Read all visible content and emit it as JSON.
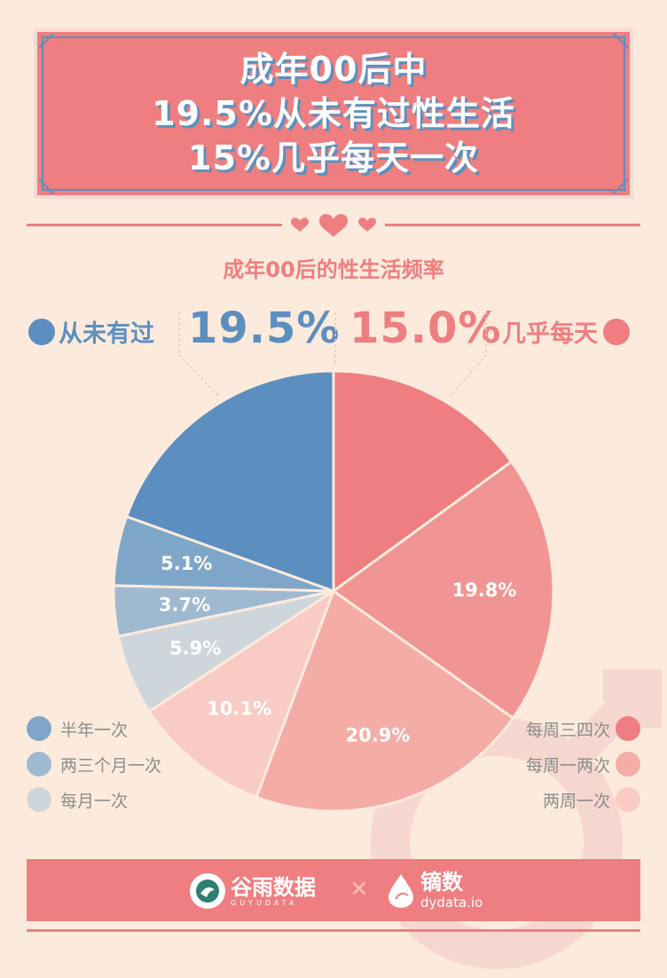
{
  "banner": {
    "line1": "成年00后中",
    "line2": "19.5%从未有过性生活",
    "line3": "15%几乎每天一次"
  },
  "subtitle": "成年00后的性生活频率",
  "callout_left": {
    "label": "从未有过",
    "value": "19.5%",
    "color": "#5c8fc0"
  },
  "callout_right": {
    "label": "几乎每天",
    "value": "15.0%",
    "color": "#ee7e80"
  },
  "chart_data": {
    "type": "pie",
    "title": "成年00后的性生活频率",
    "start": "12 o'clock, clockwise",
    "slices": [
      {
        "label": "几乎每天",
        "value": 15.0,
        "color": "#ee7e80",
        "display": ""
      },
      {
        "label": "每周三四次",
        "value": 19.8,
        "color": "#f09593",
        "display": "19.8%"
      },
      {
        "label": "每周一两次",
        "value": 20.9,
        "color": "#f4aca6",
        "display": "20.9%"
      },
      {
        "label": "两周一次",
        "value": 10.1,
        "color": "#f8cbc4",
        "display": "10.1%"
      },
      {
        "label": "每月一次",
        "value": 5.9,
        "color": "#cfd6db",
        "display": "5.9%"
      },
      {
        "label": "两三个月一次",
        "value": 3.7,
        "color": "#9fb9d0",
        "display": "3.7%"
      },
      {
        "label": "半年一次",
        "value": 5.1,
        "color": "#7ea6c9",
        "display": "5.1%"
      },
      {
        "label": "从未有过",
        "value": 19.5,
        "color": "#5c8fc0",
        "display": ""
      }
    ]
  },
  "legend_left": [
    {
      "label": "半年一次",
      "color": "#7ea6c9"
    },
    {
      "label": "两三个月一次",
      "color": "#9fb9d0"
    },
    {
      "label": "每月一次",
      "color": "#cfd6db"
    }
  ],
  "legend_right": [
    {
      "label": "每周三四次",
      "color": "#ee7e80"
    },
    {
      "label": "每周一两次",
      "color": "#f4aca6"
    },
    {
      "label": "两周一次",
      "color": "#f8cbc4"
    }
  ],
  "footer": {
    "logo1_name": "谷雨数据",
    "logo1_sub": "GUYUDATA",
    "separator": "×",
    "logo2_name": "镝数",
    "logo2_sub": "dydata.io"
  }
}
